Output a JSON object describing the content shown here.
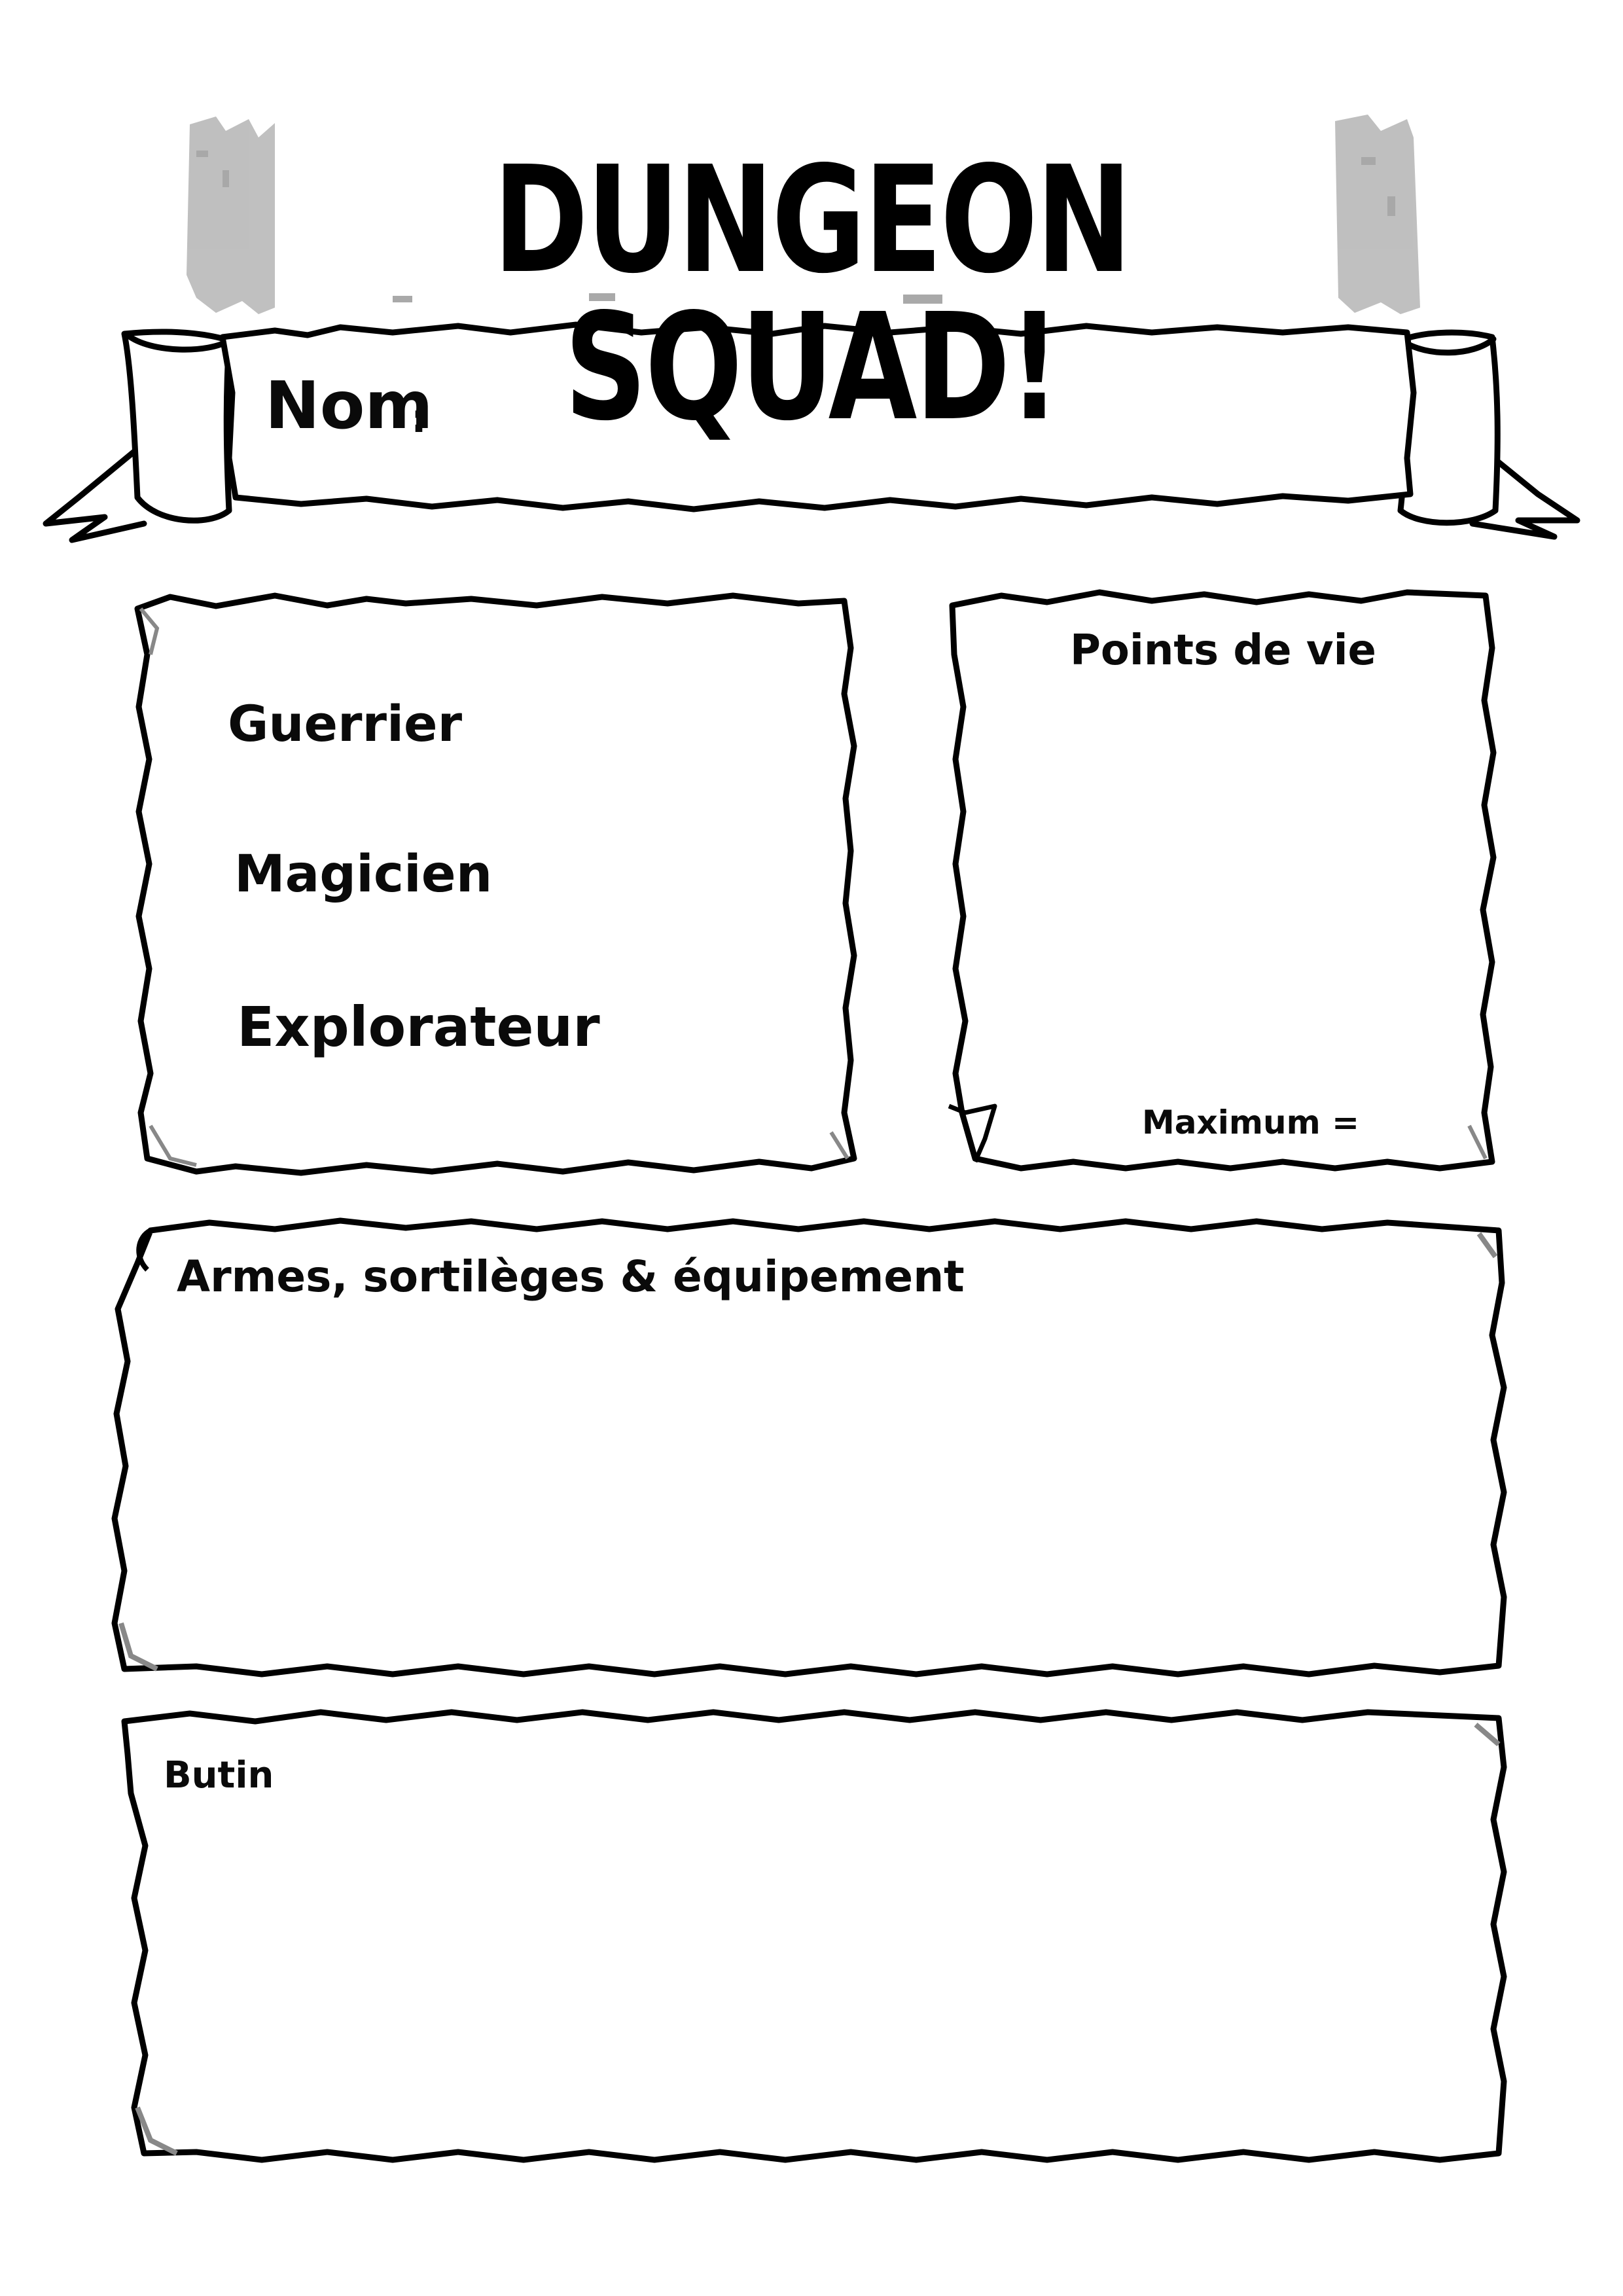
{
  "header": {
    "title": "DUNGEON SQUAD!"
  },
  "name_banner": {
    "label": "Nom",
    "colon": ":"
  },
  "class_box": {
    "options": [
      "Guerrier",
      "Magicien",
      "Explorateur"
    ]
  },
  "hp_box": {
    "title": "Points de vie",
    "maximum_label": "Maximum ="
  },
  "gear_box": {
    "title": "Armes, sortilèges & équipement"
  },
  "loot_box": {
    "title": "Butin"
  },
  "colors": {
    "ink": "#000000",
    "grunge": "#8a8a8a",
    "paper": "#ffffff"
  }
}
